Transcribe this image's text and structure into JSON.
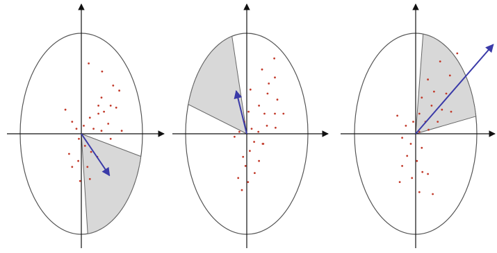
{
  "colors": {
    "axis": "#111111",
    "circle": "#555555",
    "sector_fill": "#d8d8d8",
    "sector_stroke": "#666666",
    "arrow": "#3a3aa8",
    "point": "#c23a2a"
  },
  "panels": [
    {
      "sector": {
        "start_deg": -13,
        "end_deg": -84
      },
      "vector": {
        "angle_deg": -42,
        "length": 0.62
      },
      "points": [
        [
          0.12,
          0.7
        ],
        [
          0.34,
          0.62
        ],
        [
          0.52,
          0.48
        ],
        [
          0.62,
          0.43
        ],
        [
          0.33,
          0.36
        ],
        [
          0.48,
          0.28
        ],
        [
          0.28,
          0.28
        ],
        [
          0.57,
          0.26
        ],
        [
          0.37,
          0.22
        ],
        [
          0.14,
          0.16
        ],
        [
          0.28,
          0.2
        ],
        [
          -0.26,
          0.24
        ],
        [
          -0.15,
          0.12
        ],
        [
          -0.08,
          0.05
        ],
        [
          0.04,
          0.08
        ],
        [
          0.2,
          0.05
        ],
        [
          0.33,
          0.03
        ],
        [
          0.44,
          0.1
        ],
        [
          0.66,
          0.03
        ],
        [
          0.48,
          -0.05
        ],
        [
          -0.04,
          -0.05
        ],
        [
          0.06,
          -0.12
        ],
        [
          0.16,
          -0.18
        ],
        [
          0.26,
          -0.23
        ],
        [
          0.1,
          -0.33
        ],
        [
          -0.05,
          -0.27
        ],
        [
          -0.15,
          -0.33
        ],
        [
          -0.2,
          -0.2
        ],
        [
          0.14,
          -0.45
        ],
        [
          -0.02,
          -0.47
        ]
      ]
    },
    {
      "sector": {
        "start_deg": 104,
        "end_deg": 163
      },
      "vector": {
        "angle_deg": 112,
        "length": 0.46
      },
      "points": [
        [
          0.45,
          0.75
        ],
        [
          0.25,
          0.64
        ],
        [
          0.46,
          0.56
        ],
        [
          0.36,
          0.5
        ],
        [
          0.06,
          0.44
        ],
        [
          0.34,
          0.4
        ],
        [
          0.5,
          0.34
        ],
        [
          0.2,
          0.28
        ],
        [
          0.29,
          0.2
        ],
        [
          0.46,
          0.2
        ],
        [
          0.6,
          0.2
        ],
        [
          0.03,
          0.22
        ],
        [
          -0.04,
          0.12
        ],
        [
          0.08,
          0.05
        ],
        [
          0.19,
          0.02
        ],
        [
          0.33,
          0.08
        ],
        [
          0.47,
          0.06
        ],
        [
          -0.12,
          0.02
        ],
        [
          -0.2,
          -0.03
        ],
        [
          0.12,
          -0.08
        ],
        [
          0.26,
          -0.1
        ],
        [
          0.05,
          -0.17
        ],
        [
          -0.06,
          -0.23
        ],
        [
          0.2,
          -0.27
        ],
        [
          -0.02,
          -0.32
        ],
        [
          0.13,
          -0.39
        ],
        [
          -0.14,
          -0.44
        ],
        [
          0.02,
          -0.48
        ],
        [
          -0.08,
          -0.56
        ],
        [
          0.27,
          -0.1
        ]
      ]
    },
    {
      "sector": {
        "start_deg": 10,
        "end_deg": 83
      },
      "vector": {
        "angle_deg": 35,
        "length": 1.55
      },
      "points": [
        [
          0.68,
          0.8
        ],
        [
          0.4,
          0.72
        ],
        [
          0.56,
          0.58
        ],
        [
          0.2,
          0.54
        ],
        [
          0.3,
          0.42
        ],
        [
          0.5,
          0.4
        ],
        [
          0.1,
          0.36
        ],
        [
          0.26,
          0.28
        ],
        [
          0.43,
          0.24
        ],
        [
          0.58,
          0.22
        ],
        [
          0.06,
          0.2
        ],
        [
          0.16,
          0.12
        ],
        [
          0.36,
          0.12
        ],
        [
          -0.3,
          0.18
        ],
        [
          -0.16,
          0.08
        ],
        [
          -0.04,
          0.12
        ],
        [
          0.06,
          0.02
        ],
        [
          0.21,
          0.04
        ],
        [
          -0.22,
          -0.04
        ],
        [
          -0.08,
          -0.1
        ],
        [
          0.1,
          -0.14
        ],
        [
          -0.14,
          -0.22
        ],
        [
          0.02,
          -0.27
        ],
        [
          -0.22,
          -0.32
        ],
        [
          0.11,
          -0.38
        ],
        [
          -0.06,
          -0.44
        ],
        [
          0.2,
          -0.4
        ],
        [
          -0.26,
          -0.48
        ],
        [
          0.06,
          -0.58
        ],
        [
          0.28,
          -0.6
        ]
      ]
    }
  ]
}
